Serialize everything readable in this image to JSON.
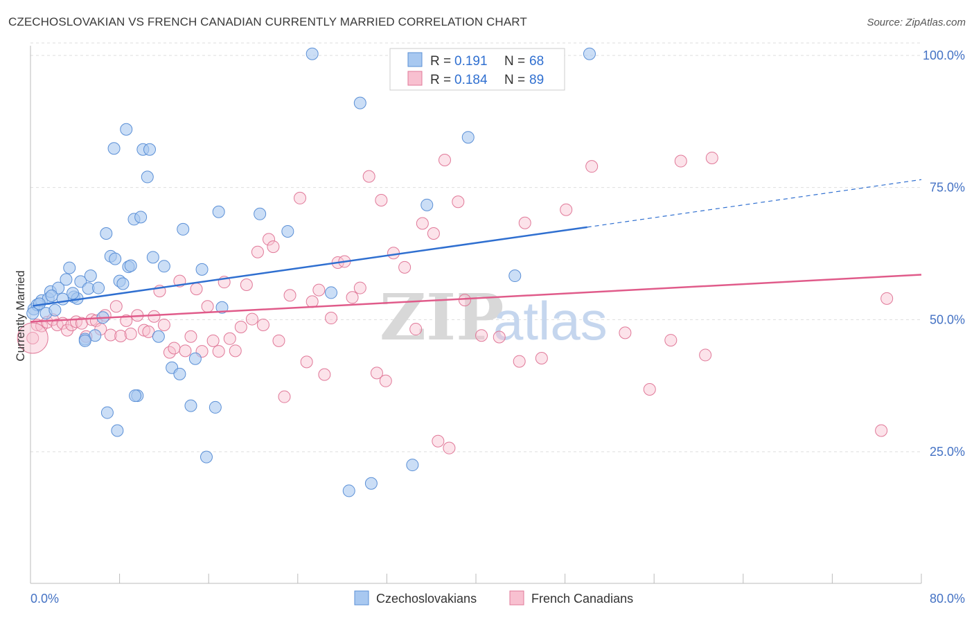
{
  "header": {
    "title": "CZECHOSLOVAKIAN VS FRENCH CANADIAN CURRENTLY MARRIED CORRELATION CHART",
    "source": "Source: ZipAtlas.com"
  },
  "watermark": {
    "zip": "ZIP",
    "atlas": "atlas"
  },
  "legend_top": {
    "rows": [
      {
        "r_label": "R =",
        "r_value": "0.191",
        "n_label": "N =",
        "n_value": "68"
      },
      {
        "r_label": "R =",
        "r_value": "0.184",
        "n_label": "N =",
        "n_value": "89"
      }
    ]
  },
  "legend_bottom": {
    "items": [
      "Czechoslovakians",
      "French Canadians"
    ]
  },
  "colors": {
    "blue_fill": "#a8c8f0",
    "blue_stroke": "#5a8fd6",
    "blue_line": "#2f6fd0",
    "pink_fill": "#f8c0d0",
    "pink_stroke": "#e07898",
    "pink_line": "#e05b8a",
    "grid": "#dddddd",
    "tick_text": "#4472c4"
  },
  "chart_data": {
    "type": "scatter",
    "title": "CZECHOSLOVAKIAN VS FRENCH CANADIAN CURRENTLY MARRIED CORRELATION CHART",
    "xlabel": "",
    "ylabel": "Currently Married",
    "xlim": [
      0,
      80
    ],
    "ylim": [
      0,
      105
    ],
    "x_tick_labels": [
      "0.0%",
      "80.0%"
    ],
    "y_ticks": [
      25,
      50,
      75,
      100
    ],
    "y_tick_labels": [
      "25.0%",
      "50.0%",
      "75.0%",
      "100.0%"
    ],
    "grid": true,
    "legend_position": "top-center",
    "series": [
      {
        "name": "Czechoslovakians",
        "r": 0.191,
        "n": 68,
        "trend": {
          "x0": 0.2,
          "y0": 52.6,
          "x1": 50.0,
          "y1": 67.5,
          "dash_to_x": 80.0,
          "dash_to_y": 76.5
        },
        "points": [
          [
            0.3,
            52.0
          ],
          [
            0.6,
            52.8
          ],
          [
            1.0,
            53.6
          ],
          [
            1.4,
            51.2
          ],
          [
            1.6,
            54.0
          ],
          [
            1.8,
            55.3
          ],
          [
            2.2,
            51.8
          ],
          [
            2.5,
            56.0
          ],
          [
            2.9,
            53.9
          ],
          [
            3.2,
            57.6
          ],
          [
            3.5,
            59.8
          ],
          [
            3.9,
            54.3
          ],
          [
            4.2,
            54.0
          ],
          [
            4.5,
            57.2
          ],
          [
            4.9,
            46.3
          ],
          [
            5.2,
            55.9
          ],
          [
            5.4,
            58.3
          ],
          [
            5.8,
            47.0
          ],
          [
            6.1,
            56.0
          ],
          [
            6.5,
            50.4
          ],
          [
            6.8,
            66.3
          ],
          [
            7.2,
            62.0
          ],
          [
            7.5,
            82.4
          ],
          [
            7.6,
            61.5
          ],
          [
            8.0,
            57.3
          ],
          [
            8.3,
            56.8
          ],
          [
            8.6,
            86.0
          ],
          [
            8.8,
            60.0
          ],
          [
            9.0,
            60.2
          ],
          [
            9.3,
            69.0
          ],
          [
            9.6,
            35.6
          ],
          [
            9.9,
            69.4
          ],
          [
            10.1,
            82.2
          ],
          [
            10.5,
            77.0
          ],
          [
            10.7,
            82.2
          ],
          [
            11.0,
            61.8
          ],
          [
            11.5,
            46.8
          ],
          [
            12.0,
            60.1
          ],
          [
            12.7,
            40.9
          ],
          [
            13.4,
            39.7
          ],
          [
            13.7,
            67.1
          ],
          [
            14.4,
            33.7
          ],
          [
            14.8,
            42.6
          ],
          [
            15.4,
            59.5
          ],
          [
            15.8,
            24.0
          ],
          [
            16.6,
            33.4
          ],
          [
            16.9,
            70.4
          ],
          [
            17.2,
            52.3
          ],
          [
            6.9,
            32.4
          ],
          [
            7.8,
            29.0
          ],
          [
            9.4,
            35.6
          ],
          [
            4.9,
            46.0
          ],
          [
            20.6,
            70.0
          ],
          [
            23.1,
            66.7
          ],
          [
            25.3,
            100.3
          ],
          [
            27.0,
            55.1
          ],
          [
            28.6,
            17.6
          ],
          [
            29.6,
            91.0
          ],
          [
            30.6,
            19.0
          ],
          [
            34.3,
            22.5
          ],
          [
            35.6,
            71.7
          ],
          [
            39.3,
            84.5
          ],
          [
            43.5,
            58.3
          ],
          [
            50.2,
            100.3
          ],
          [
            0.2,
            51.2
          ],
          [
            1.9,
            54.5
          ],
          [
            3.8,
            55.0
          ],
          [
            0.8,
            53.0
          ]
        ]
      },
      {
        "name": "French Canadians",
        "r": 0.184,
        "n": 89,
        "trend": {
          "x0": 0.0,
          "y0": 49.6,
          "x1": 80.0,
          "y1": 58.5
        },
        "points": [
          [
            0.2,
            46.5
          ],
          [
            0.6,
            49.0
          ],
          [
            1.0,
            48.8
          ],
          [
            1.5,
            49.5
          ],
          [
            2.0,
            50.0
          ],
          [
            2.4,
            49.0
          ],
          [
            2.9,
            49.3
          ],
          [
            3.3,
            48.0
          ],
          [
            3.7,
            49.0
          ],
          [
            4.1,
            49.6
          ],
          [
            4.6,
            49.3
          ],
          [
            5.0,
            46.8
          ],
          [
            5.5,
            50.0
          ],
          [
            5.9,
            49.8
          ],
          [
            6.3,
            48.2
          ],
          [
            6.7,
            50.8
          ],
          [
            7.2,
            47.1
          ],
          [
            7.7,
            52.5
          ],
          [
            8.1,
            46.9
          ],
          [
            8.6,
            49.8
          ],
          [
            9.0,
            47.3
          ],
          [
            9.6,
            50.8
          ],
          [
            10.2,
            48.0
          ],
          [
            10.6,
            47.7
          ],
          [
            11.1,
            50.6
          ],
          [
            11.6,
            55.4
          ],
          [
            12.0,
            49.0
          ],
          [
            12.5,
            43.8
          ],
          [
            12.9,
            44.6
          ],
          [
            13.4,
            57.3
          ],
          [
            13.9,
            44.1
          ],
          [
            14.4,
            46.8
          ],
          [
            14.9,
            55.8
          ],
          [
            15.4,
            44.0
          ],
          [
            15.9,
            52.5
          ],
          [
            16.4,
            46.0
          ],
          [
            16.9,
            44.0
          ],
          [
            17.4,
            57.1
          ],
          [
            17.9,
            46.4
          ],
          [
            18.4,
            44.1
          ],
          [
            18.9,
            48.6
          ],
          [
            19.4,
            56.6
          ],
          [
            19.9,
            50.1
          ],
          [
            20.4,
            62.8
          ],
          [
            20.9,
            49.0
          ],
          [
            21.4,
            65.2
          ],
          [
            21.8,
            63.8
          ],
          [
            22.3,
            46.0
          ],
          [
            22.8,
            35.4
          ],
          [
            23.3,
            54.6
          ],
          [
            24.2,
            73.0
          ],
          [
            24.8,
            42.0
          ],
          [
            25.3,
            53.4
          ],
          [
            25.9,
            55.6
          ],
          [
            26.4,
            39.6
          ],
          [
            27.0,
            50.3
          ],
          [
            27.6,
            60.8
          ],
          [
            28.2,
            61.0
          ],
          [
            28.9,
            54.2
          ],
          [
            29.6,
            56.0
          ],
          [
            30.4,
            77.1
          ],
          [
            31.1,
            39.9
          ],
          [
            31.5,
            72.6
          ],
          [
            31.9,
            38.4
          ],
          [
            32.6,
            62.6
          ],
          [
            33.6,
            59.9
          ],
          [
            34.6,
            48.2
          ],
          [
            35.2,
            68.2
          ],
          [
            36.2,
            66.3
          ],
          [
            36.6,
            27.0
          ],
          [
            37.6,
            25.7
          ],
          [
            37.2,
            80.2
          ],
          [
            38.4,
            72.3
          ],
          [
            39.0,
            53.7
          ],
          [
            40.5,
            47.0
          ],
          [
            42.1,
            46.7
          ],
          [
            43.9,
            42.1
          ],
          [
            44.4,
            68.3
          ],
          [
            45.9,
            42.7
          ],
          [
            48.1,
            70.8
          ],
          [
            50.4,
            79.0
          ],
          [
            53.4,
            47.5
          ],
          [
            55.6,
            36.8
          ],
          [
            57.5,
            46.1
          ],
          [
            58.4,
            80.0
          ],
          [
            60.6,
            43.3
          ],
          [
            61.2,
            80.6
          ],
          [
            76.4,
            29.0
          ],
          [
            76.9,
            54.0
          ]
        ]
      }
    ]
  }
}
